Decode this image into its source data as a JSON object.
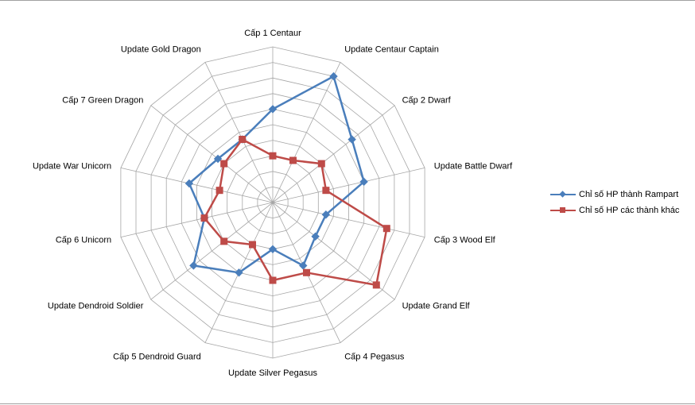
{
  "chart_data": {
    "type": "radar",
    "categories": [
      "Cấp 1 Centaur",
      "Update Centaur Captain",
      "Cấp 2 Dwarf",
      "Update Battle Dwarf",
      "Cấp 3 Wood Elf",
      "Update Grand Elf",
      "Cấp 4 Pegasus",
      "Update Silver Pegasus",
      "Cấp 5 Dendroid Guard",
      "Update Dendroid Soldier",
      "Cấp 6 Unicorn",
      "Update War Unicorn",
      "Cấp 7 Green  Dragon",
      "Update Gold Dragon"
    ],
    "rmax": 10,
    "grid_rings": 10,
    "series": [
      {
        "name": "Chỉ số HP thành Rampart",
        "color": "#4a7ebb",
        "marker": "diamond",
        "values": [
          6,
          9,
          6.5,
          6,
          3.5,
          3.5,
          4.5,
          3,
          5,
          6.5,
          4.5,
          5.5,
          4.5,
          4.5
        ]
      },
      {
        "name": "Chỉ số HP các thành khác",
        "color": "#be4b48",
        "marker": "square",
        "values": [
          3,
          3,
          4,
          3.5,
          7.5,
          8.5,
          5,
          5,
          3,
          4,
          4.5,
          3.5,
          4,
          4.5
        ]
      }
    ],
    "legend_position": "right"
  }
}
